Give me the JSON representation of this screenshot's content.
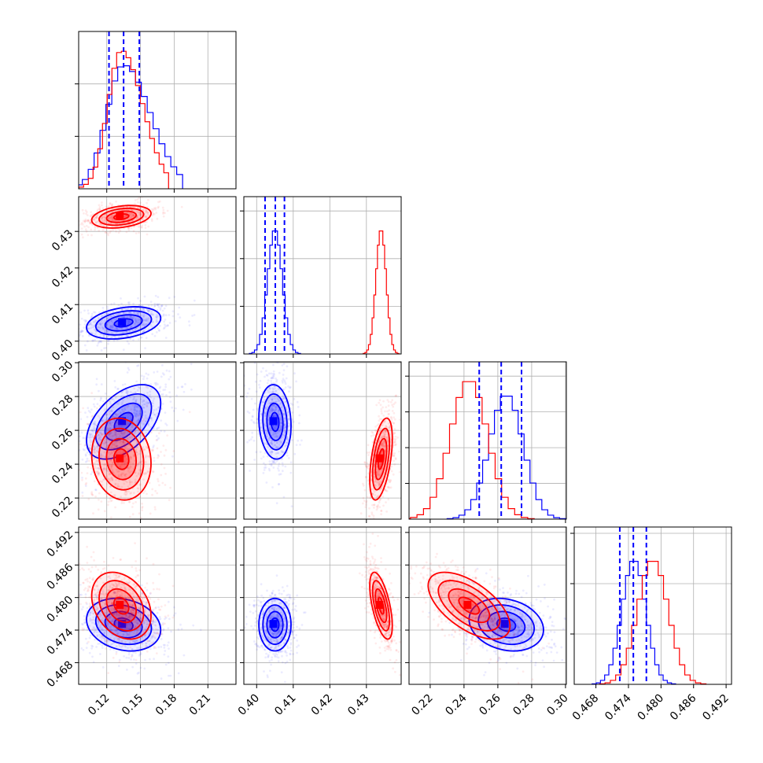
{
  "chart_data": {
    "type": "corner",
    "colors": {
      "blue": "#0000ff",
      "red": "#ff0000",
      "grid": "#b0b0b0",
      "frame": "#000000"
    },
    "parameters": [
      {
        "range": [
          0.095,
          0.235
        ],
        "ticks": [
          0.12,
          0.15,
          0.18,
          0.21
        ],
        "tick_labels": [
          "0.12",
          "0.15",
          "0.18",
          "0.21"
        ]
      },
      {
        "range": [
          0.3965,
          0.4395
        ],
        "ticks": [
          0.4,
          0.41,
          0.42,
          0.43
        ],
        "tick_labels": [
          "0.40",
          "0.41",
          "0.42",
          "0.43"
        ]
      },
      {
        "range": [
          0.2075,
          0.3005
        ],
        "ticks": [
          0.22,
          0.24,
          0.26,
          0.28,
          0.3
        ],
        "tick_labels": [
          "0.22",
          "0.24",
          "0.26",
          "0.28",
          "0.30"
        ]
      },
      {
        "range": [
          0.464,
          0.493
        ],
        "ticks": [
          0.468,
          0.474,
          0.48,
          0.486,
          0.492
        ],
        "tick_labels": [
          "0.468",
          "0.474",
          "0.480",
          "0.486",
          "0.492"
        ]
      }
    ],
    "series": [
      {
        "color": "blue",
        "means": [
          0.135,
          0.405,
          0.265,
          0.475
        ],
        "sds": [
          0.015,
          0.002,
          0.01,
          0.0022
        ],
        "quantiles": [
          [
            0.122,
            0.135,
            0.149
          ],
          [
            0.4023,
            0.4051,
            0.4076
          ],
          [
            0.249,
            0.262,
            0.274
          ],
          [
            0.4724,
            0.4749,
            0.4773
          ]
        ],
        "correlations": {
          "0-1": 0.3,
          "0-2": 0.5,
          "0-3": -0.2,
          "1-2": -0.1,
          "1-3": 0.0,
          "2-3": -0.2
        }
      },
      {
        "color": "red",
        "means": [
          0.133,
          0.434,
          0.243,
          0.4785
        ],
        "sds": [
          0.012,
          0.0014,
          0.011,
          0.0028
        ],
        "quantiles": [
          [
            0.121,
            0.133,
            0.146
          ],
          [
            0.4326,
            0.434,
            0.4354
          ],
          [
            0.232,
            0.243,
            0.254
          ],
          [
            0.4757,
            0.4785,
            0.4813
          ]
        ],
        "correlations": {
          "0-1": 0.3,
          "0-2": -0.1,
          "0-3": -0.3,
          "1-2": 0.5,
          "1-3": -0.6,
          "2-3": -0.6
        }
      }
    ],
    "diagonal_hist_max": [
      0.3,
      0.33,
      0.11,
      0.125
    ],
    "diagonal_yticks": [
      [
        0.1,
        0.2
      ],
      [
        0.1,
        0.2,
        0.3
      ],
      [
        0.025,
        0.05,
        0.075,
        0.1
      ],
      [
        0.04,
        0.08,
        0.12
      ]
    ],
    "contour_levels_sigma": [
      0.5,
      1.0,
      1.5,
      2.0
    ],
    "quantile_line_color": "blue",
    "grid": true,
    "x_tick_label_rotation_deg": 45,
    "y_tick_label_rotation_deg": 45
  }
}
